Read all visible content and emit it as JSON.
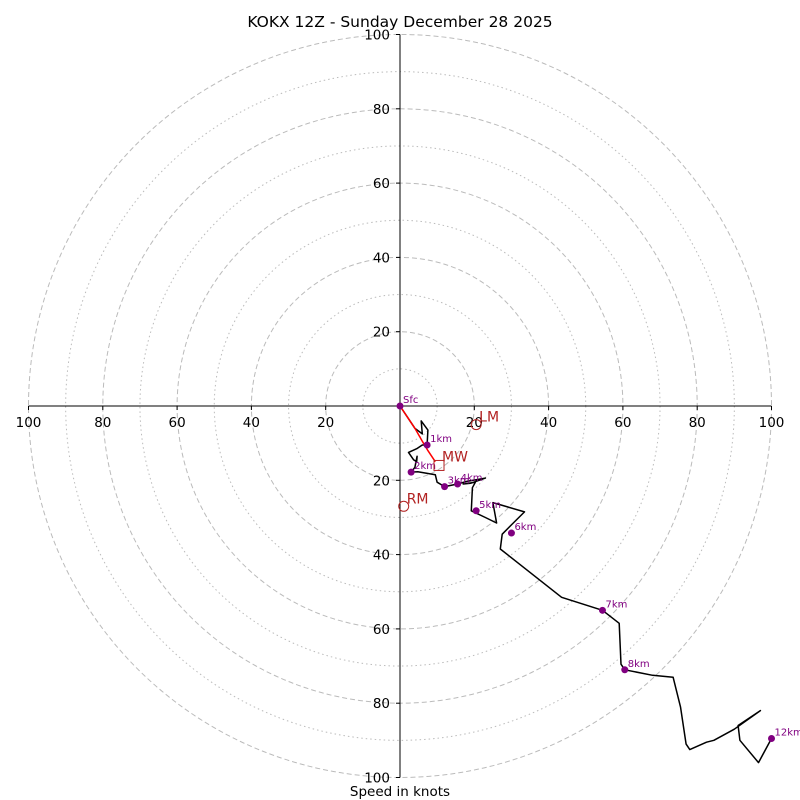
{
  "chart_data": {
    "type": "hodograph",
    "title": "KOKX 12Z - Sunday December 28 2025",
    "xlabel": "Speed in knots",
    "xlim": [
      -100,
      100
    ],
    "ylim": [
      -100,
      100
    ],
    "ring_major": [
      20,
      40,
      60,
      80,
      100
    ],
    "ring_minor": [
      10,
      30,
      50,
      70,
      90
    ],
    "x_ticks": [
      {
        "value": -100,
        "label": "100"
      },
      {
        "value": -80,
        "label": "80"
      },
      {
        "value": -60,
        "label": "60"
      },
      {
        "value": -40,
        "label": "40"
      },
      {
        "value": -20,
        "label": "20"
      },
      {
        "value": 20,
        "label": "20"
      },
      {
        "value": 40,
        "label": "40"
      },
      {
        "value": 60,
        "label": "60"
      },
      {
        "value": 80,
        "label": "80"
      },
      {
        "value": 100,
        "label": "100"
      }
    ],
    "y_ticks": [
      {
        "value": 100,
        "label": "100"
      },
      {
        "value": 80,
        "label": "80"
      },
      {
        "value": 60,
        "label": "60"
      },
      {
        "value": 40,
        "label": "40"
      },
      {
        "value": 20,
        "label": "20"
      },
      {
        "value": -20,
        "label": "20"
      },
      {
        "value": -40,
        "label": "40"
      },
      {
        "value": -60,
        "label": "60"
      },
      {
        "value": -80,
        "label": "80"
      },
      {
        "value": -100,
        "label": "100"
      }
    ],
    "trace_color": "#000000",
    "low_level_color": "#ff0000",
    "height_marker_color": "#800080",
    "motion_color": "#b22222",
    "ring_color": "#bbbbbb",
    "low_level_trace": [
      [
        0,
        0
      ],
      [
        2,
        -3
      ],
      [
        4,
        -6
      ],
      [
        6,
        -9.5
      ],
      [
        7.5,
        -12
      ],
      [
        9.5,
        -15
      ]
    ],
    "trace": [
      [
        0,
        0
      ],
      [
        2,
        -3
      ],
      [
        4,
        -6
      ],
      [
        6,
        -7.5
      ],
      [
        5.7,
        -4
      ],
      [
        7.5,
        -6.5
      ],
      [
        7.3,
        -10.5
      ],
      [
        6,
        -10.5
      ],
      [
        4.5,
        -11.5
      ],
      [
        2.3,
        -12.5
      ],
      [
        3.7,
        -14.5
      ],
      [
        4.5,
        -15
      ],
      [
        4.6,
        -13.5
      ],
      [
        4,
        -16.5
      ],
      [
        3,
        -17.8
      ],
      [
        4.8,
        -17.7
      ],
      [
        9.5,
        -18.5
      ],
      [
        10,
        -20.5
      ],
      [
        12,
        -21.7
      ],
      [
        15.5,
        -21
      ],
      [
        18,
        -20.3
      ],
      [
        23,
        -19.4
      ],
      [
        19,
        -20.8
      ],
      [
        17,
        -21
      ],
      [
        20.3,
        -20.5
      ],
      [
        19.5,
        -22
      ],
      [
        19.2,
        -28.2
      ],
      [
        23,
        -30
      ],
      [
        26,
        -31.5
      ],
      [
        25,
        -26
      ],
      [
        33.5,
        -28.5
      ],
      [
        30,
        -32
      ],
      [
        27.5,
        -34.5
      ],
      [
        27,
        -38.5
      ],
      [
        43.5,
        -51.5
      ],
      [
        54.5,
        -55
      ],
      [
        59,
        -58.5
      ],
      [
        59.5,
        -69.5
      ],
      [
        60.5,
        -71
      ],
      [
        68,
        -72.5
      ],
      [
        73.5,
        -73
      ],
      [
        75.5,
        -81
      ],
      [
        77,
        -91
      ],
      [
        78,
        -92.5
      ],
      [
        82.5,
        -90.5
      ],
      [
        84.5,
        -90
      ],
      [
        90,
        -87
      ],
      [
        97,
        -82
      ],
      [
        91,
        -86
      ],
      [
        91.5,
        -90
      ],
      [
        96.5,
        -96
      ],
      [
        100,
        -89.5
      ]
    ],
    "height_markers": [
      {
        "label": "Sfc",
        "u": 0,
        "v": 0
      },
      {
        "label": "1km",
        "u": 7.3,
        "v": -10.5
      },
      {
        "label": "2km",
        "u": 3,
        "v": -17.8
      },
      {
        "label": "3km",
        "u": 12,
        "v": -21.7
      },
      {
        "label": "4km",
        "u": 15.5,
        "v": -21
      },
      {
        "label": "5km",
        "u": 20.5,
        "v": -28.2
      },
      {
        "label": "6km",
        "u": 30,
        "v": -34.2
      },
      {
        "label": "7km",
        "u": 54.5,
        "v": -55
      },
      {
        "label": "8km",
        "u": 60.5,
        "v": -71
      },
      {
        "label": "12km",
        "u": 100,
        "v": -89.5
      }
    ],
    "storm_motion": [
      {
        "label": "LM",
        "u": 20.5,
        "v": -5
      },
      {
        "label": "MW",
        "u": 10.5,
        "v": -16
      },
      {
        "label": "RM",
        "u": 1,
        "v": -27
      }
    ]
  }
}
